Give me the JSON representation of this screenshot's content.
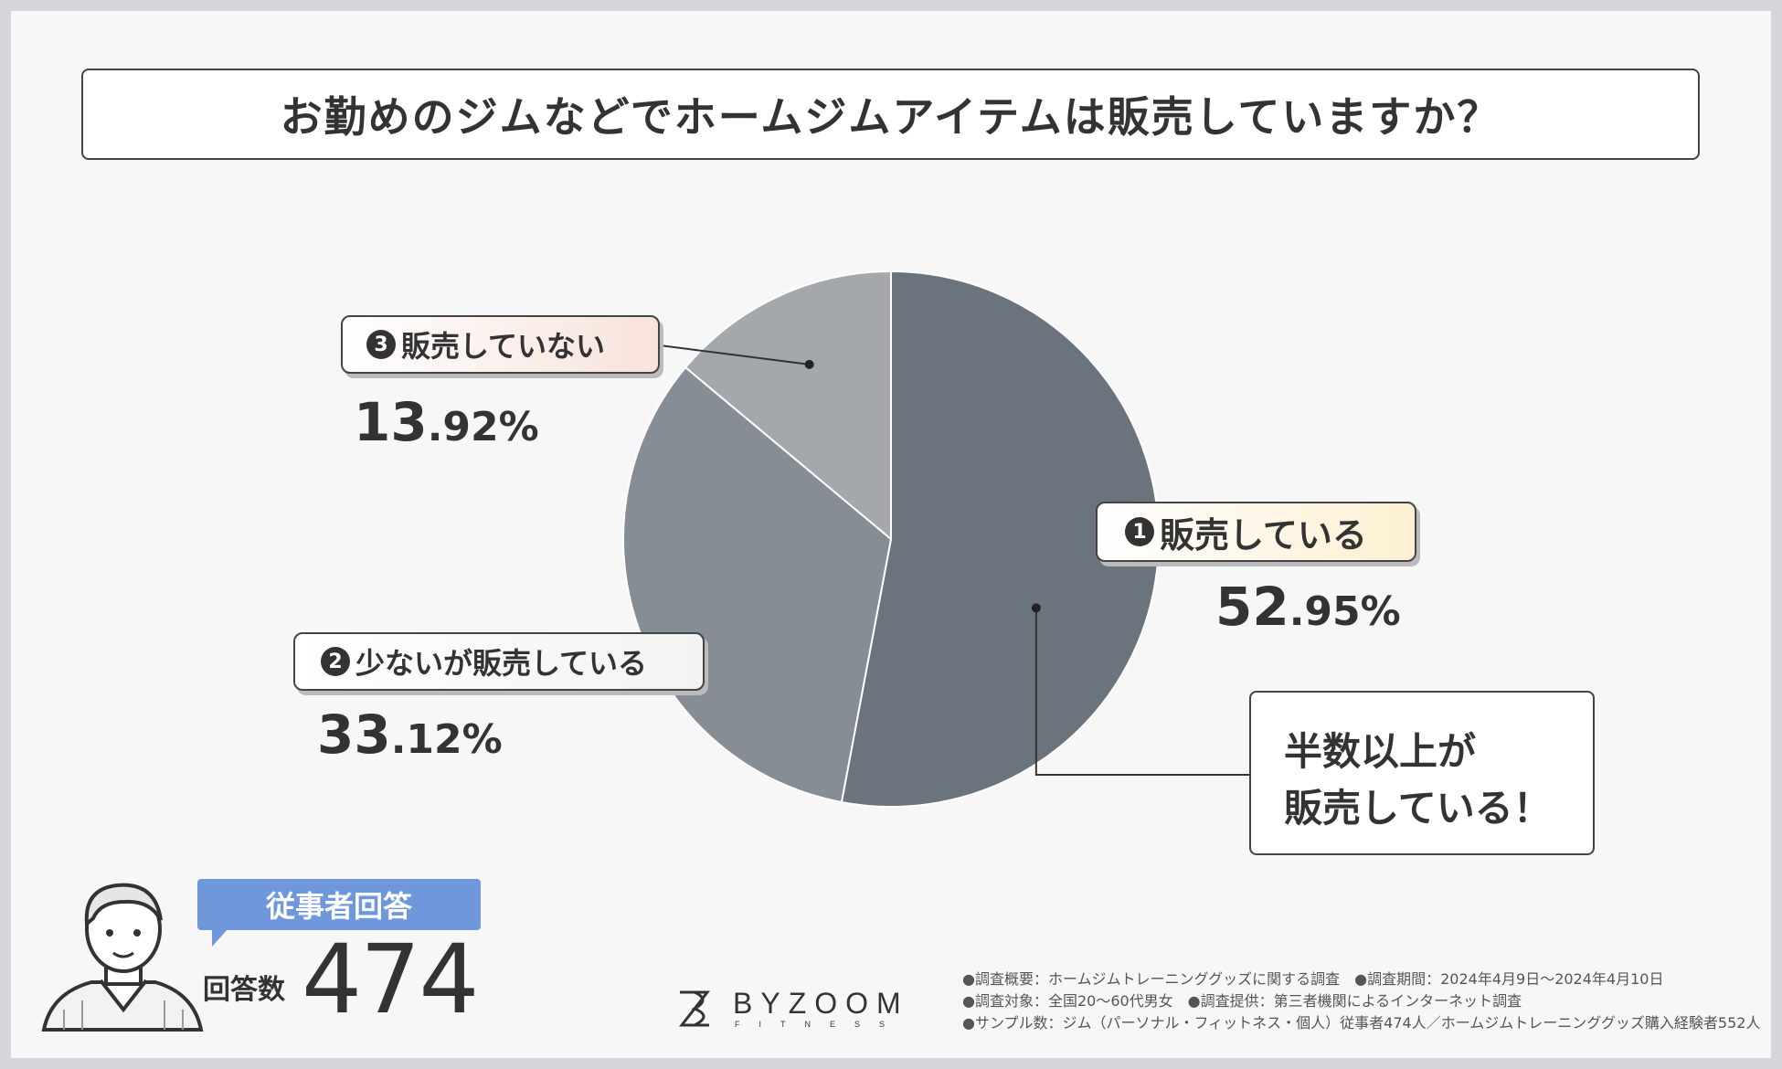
{
  "title": "お勤めのジムなどでホームジムアイテムは販売していますか？",
  "chart_data": {
    "type": "pie",
    "title": "お勤めのジムなどでホームジムアイテムは販売していますか？",
    "slices": [
      {
        "badge": "1",
        "label": "販売している",
        "value": 52.95,
        "pct_int": "52",
        "pct_dec": ".95%",
        "color": "#6b737c",
        "pill_color": "#fdf0d2"
      },
      {
        "badge": "2",
        "label": "少ないが販売している",
        "value": 33.12,
        "pct_int": "33",
        "pct_dec": ".12%",
        "color": "#868d95",
        "pill_color": "#f3f3f3"
      },
      {
        "badge": "3",
        "label": "販売していない",
        "value": 13.92,
        "pct_int": "13",
        "pct_dec": ".92%",
        "color": "#a4a8ad",
        "pill_color": "#f7e3db"
      }
    ]
  },
  "callout": {
    "line1": "半数以上が",
    "line2": "販売している！"
  },
  "respondent": {
    "tag": "従事者回答",
    "count_label": "回答数",
    "count": "474"
  },
  "logo": {
    "name": "BYZOOM",
    "sub": "FITNESS"
  },
  "notes": [
    "●調査概要：ホームジムトレーニンググッズに関する調査　●調査期間：2024年4月9日～2024年4月10日",
    "●調査対象：全国20～60代男女　●調査提供：第三者機関によるインターネット調査",
    "●サンプル数：ジム（パーソナル・フィットネス・個人）従事者474人／ホームジムトレーニンググッズ購入経験者552人"
  ]
}
